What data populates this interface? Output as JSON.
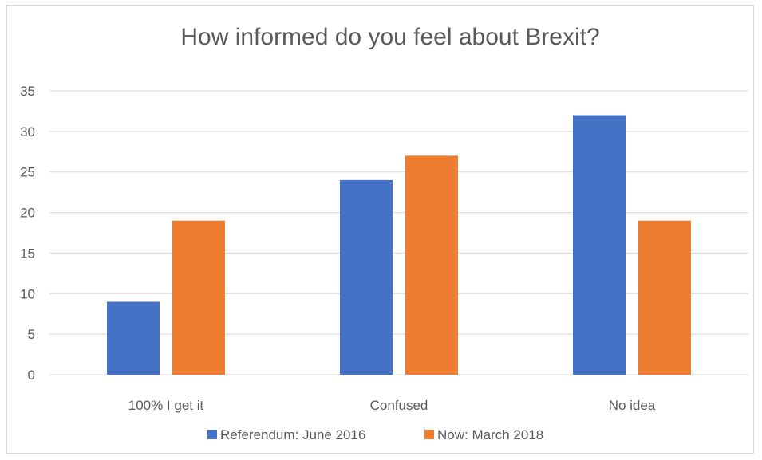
{
  "chart_data": {
    "type": "bar",
    "title": "How informed do you feel about Brexit?",
    "categories": [
      "100% I get it",
      "Confused",
      "No idea"
    ],
    "series": [
      {
        "name": "Referendum: June 2016",
        "color": "#4472C4",
        "values": [
          9,
          24,
          32
        ]
      },
      {
        "name": "Now: March 2018",
        "color": "#ED7D31",
        "values": [
          19,
          27,
          19
        ]
      }
    ],
    "ylim": [
      0,
      35
    ],
    "yticks": [
      "0",
      "5",
      "10",
      "15",
      "20",
      "25",
      "30",
      "35"
    ],
    "grid": true,
    "legend": "bottom"
  }
}
